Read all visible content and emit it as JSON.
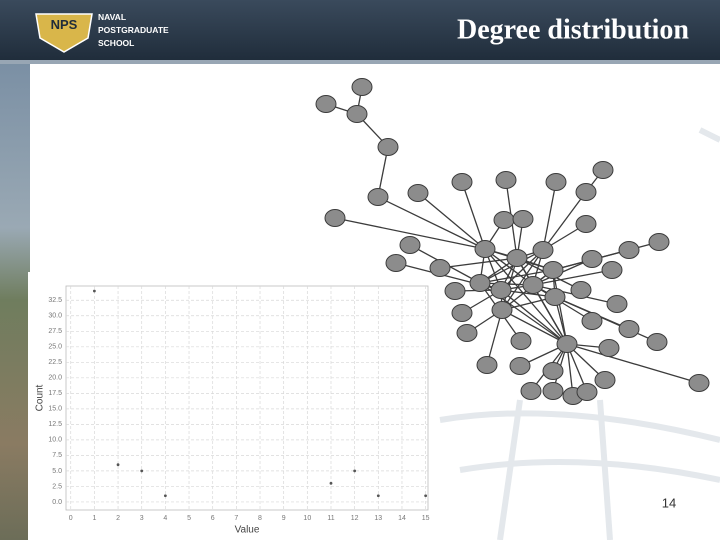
{
  "header": {
    "logo_badge": "NPS",
    "logo_lines": [
      "NAVAL",
      "POSTGRADUATE",
      "SCHOOL"
    ],
    "title": "Degree distribution"
  },
  "page_number": "14",
  "chart_data": {
    "type": "scatter",
    "xlabel": "Value",
    "ylabel": "Count",
    "x": [
      1,
      2,
      3,
      4,
      11,
      12,
      13,
      15
    ],
    "values": [
      34,
      6,
      5,
      1,
      3,
      5,
      1,
      1
    ],
    "color": "#555555",
    "xlim": [
      -0.2,
      15.1
    ],
    "ylim": [
      -1.3,
      34.8
    ],
    "xticks": [
      0,
      1,
      2,
      3,
      4,
      5,
      6,
      7,
      8,
      9,
      10,
      11,
      12,
      13,
      14,
      15
    ],
    "yticks": [
      {
        "value": 0,
        "label": "0.0"
      },
      2.5,
      {
        "value": 5,
        "label": "5.0"
      },
      7.5,
      {
        "value": 10,
        "label": "10.0"
      },
      12.5,
      {
        "value": 15,
        "label": "15.0"
      },
      17.5,
      {
        "value": 20,
        "label": "20.0"
      },
      22.5,
      {
        "value": 25,
        "label": "25.0"
      },
      27.5,
      {
        "value": 30,
        "label": "30.0"
      },
      32.5
    ],
    "grid": true
  }
}
